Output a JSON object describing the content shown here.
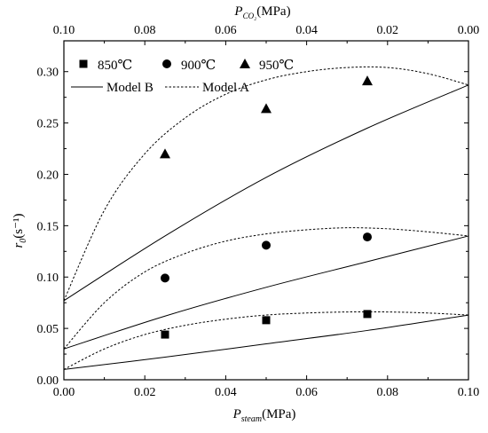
{
  "chart_data": {
    "type": "scatter",
    "xlabel": {
      "main": "P",
      "sub": "steam",
      "unit": "(MPa)"
    },
    "x2label": {
      "main": "P",
      "sub": "CO₂",
      "unit": "(MPa)"
    },
    "ylabel": {
      "main": "r",
      "sub": "0",
      "unit": "(s⁻¹)"
    },
    "xlim": [
      0,
      0.1
    ],
    "x2lim": [
      0.1,
      0
    ],
    "ylim": [
      0,
      0.33
    ],
    "x_ticks": [
      "0.00",
      "0.02",
      "0.04",
      "0.06",
      "0.08",
      "0.10"
    ],
    "x2_ticks": [
      "0.10",
      "0.08",
      "0.06",
      "0.04",
      "0.02",
      "0.00"
    ],
    "y_ticks": [
      "0.00",
      "0.05",
      "0.10",
      "0.15",
      "0.20",
      "0.25",
      "0.30"
    ],
    "legend_placement": "top-left",
    "series": [
      {
        "name": "850℃",
        "marker": "square",
        "x": [
          0.025,
          0.05,
          0.075
        ],
        "y": [
          0.044,
          0.058,
          0.064
        ]
      },
      {
        "name": "900℃",
        "marker": "circle",
        "x": [
          0.025,
          0.05,
          0.075
        ],
        "y": [
          0.099,
          0.131,
          0.139
        ]
      },
      {
        "name": "950℃",
        "marker": "triangle",
        "x": [
          0.025,
          0.05,
          0.075
        ],
        "y": [
          0.22,
          0.264,
          0.291
        ]
      }
    ],
    "models": [
      {
        "name": "Model B",
        "style": "solid",
        "curves": [
          {
            "x": [
              0,
              0.025,
              0.05,
              0.075,
              0.1
            ],
            "y": [
              0.01,
              0.022,
              0.035,
              0.048,
              0.063
            ]
          },
          {
            "x": [
              0,
              0.025,
              0.05,
              0.075,
              0.1
            ],
            "y": [
              0.03,
              0.062,
              0.09,
              0.115,
              0.14
            ]
          },
          {
            "x": [
              0,
              0.025,
              0.05,
              0.075,
              0.1
            ],
            "y": [
              0.077,
              0.14,
              0.197,
              0.245,
              0.287
            ]
          }
        ]
      },
      {
        "name": "Model A",
        "style": "dashed",
        "curves": [
          {
            "x": [
              0,
              0.01,
              0.02,
              0.03,
              0.04,
              0.05,
              0.06,
              0.07,
              0.08,
              0.09,
              0.1
            ],
            "y": [
              0.01,
              0.03,
              0.044,
              0.053,
              0.059,
              0.063,
              0.065,
              0.066,
              0.066,
              0.065,
              0.063
            ]
          },
          {
            "x": [
              0,
              0.01,
              0.02,
              0.03,
              0.04,
              0.05,
              0.06,
              0.07,
              0.08,
              0.09,
              0.1
            ],
            "y": [
              0.03,
              0.075,
              0.105,
              0.123,
              0.135,
              0.142,
              0.146,
              0.148,
              0.147,
              0.144,
              0.14
            ]
          },
          {
            "x": [
              0,
              0.01,
              0.02,
              0.03,
              0.04,
              0.05,
              0.06,
              0.07,
              0.08,
              0.09,
              0.1
            ],
            "y": [
              0.077,
              0.165,
              0.22,
              0.255,
              0.278,
              0.292,
              0.3,
              0.304,
              0.304,
              0.298,
              0.287
            ]
          }
        ]
      }
    ]
  }
}
